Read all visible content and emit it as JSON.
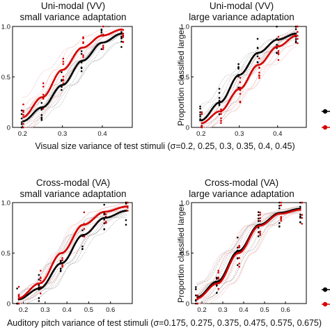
{
  "colors": {
    "adapt_small": "#000000",
    "adapt_large": "#d40000",
    "subject_small": "#9a9a9a",
    "subject_large": "#e4a0a0"
  },
  "shared_labels": {
    "xlabel_top": "Visual size variance of test stimuli   (σ=0.2, 0.25, 0.3, 0.35, 0.4, 0.45)",
    "xlabel_bottom": "Auditory pitch variance of test stimuli (σ=0.175, 0.275, 0.375, 0.475, 0.575, 0.675)"
  },
  "chart_data": [
    {
      "type": "line",
      "title": "Uni-modal (VV)",
      "subtitle": "small variance adaptation",
      "xlabel": "",
      "ylabel": "",
      "xlim": [
        0.175,
        0.475
      ],
      "ylim": [
        0,
        1
      ],
      "xticks": [
        "0.2",
        "0.3",
        "0.4"
      ],
      "xtick_values": [
        0.2,
        0.3,
        0.4
      ],
      "yticks": [
        "0",
        "0.5",
        "1.0"
      ],
      "ytick_values": [
        0,
        0.5,
        1.0
      ],
      "x": [
        0.2,
        0.25,
        0.3,
        0.35,
        0.4,
        0.45
      ],
      "series": [
        {
          "color": "#000000",
          "values": [
            0.06,
            0.2,
            0.42,
            0.66,
            0.84,
            0.93
          ]
        },
        {
          "color": "#d40000",
          "values": [
            0.1,
            0.3,
            0.57,
            0.79,
            0.91,
            0.97
          ]
        }
      ],
      "legend": "right"
    },
    {
      "type": "line",
      "title": "Uni-modal (VV)",
      "subtitle": "large variance adaptation",
      "xlabel": "",
      "ylabel": "Proportion classified larger",
      "xlim": [
        0.175,
        0.475
      ],
      "ylim": [
        0,
        1
      ],
      "xticks": [
        "0.2",
        "0.3",
        "0.4"
      ],
      "xtick_values": [
        0.2,
        0.3,
        0.4
      ],
      "yticks": [
        "0",
        "0.5",
        "1.0"
      ],
      "ytick_values": [
        0,
        0.5,
        1.0
      ],
      "x": [
        0.2,
        0.25,
        0.3,
        0.35,
        0.4,
        0.45
      ],
      "series": [
        {
          "color": "#000000",
          "values": [
            0.07,
            0.25,
            0.52,
            0.74,
            0.87,
            0.93
          ]
        },
        {
          "color": "#d40000",
          "values": [
            0.04,
            0.16,
            0.38,
            0.62,
            0.8,
            0.91
          ]
        }
      ],
      "legend": "right"
    },
    {
      "type": "line",
      "title": "Cross-modal (VA)",
      "subtitle": "small variance adaptation",
      "xlabel": "",
      "ylabel": "",
      "xlim": [
        0.15,
        0.7
      ],
      "ylim": [
        0,
        1
      ],
      "xticks": [
        "0.2",
        "0.3",
        "0.4",
        "0.5",
        "0.6"
      ],
      "xtick_values": [
        0.2,
        0.3,
        0.4,
        0.5,
        0.6
      ],
      "yticks": [
        "0",
        "0.5",
        "1.0"
      ],
      "ytick_values": [
        0,
        0.5,
        1.0
      ],
      "x": [
        0.175,
        0.275,
        0.375,
        0.475,
        0.575,
        0.675
      ],
      "series": [
        {
          "color": "#000000",
          "values": [
            0.04,
            0.15,
            0.4,
            0.68,
            0.85,
            0.92
          ]
        },
        {
          "color": "#d40000",
          "values": [
            0.05,
            0.2,
            0.5,
            0.78,
            0.91,
            0.96
          ]
        }
      ],
      "legend": "right"
    },
    {
      "type": "line",
      "title": "Cross-modal (VA)",
      "subtitle": "large variance adaptation",
      "xlabel": "",
      "ylabel": "Proportion classified larger",
      "xlim": [
        0.15,
        0.7
      ],
      "ylim": [
        0,
        1
      ],
      "xticks": [
        "0.2",
        "0.3",
        "0.4",
        "0.5",
        "0.6"
      ],
      "xtick_values": [
        0.2,
        0.3,
        0.4,
        0.5,
        0.6
      ],
      "yticks": [
        "0",
        "0.5",
        "1.0"
      ],
      "ytick_values": [
        0,
        0.5,
        1.0
      ],
      "x": [
        0.175,
        0.275,
        0.375,
        0.475,
        0.575,
        0.675
      ],
      "series": [
        {
          "color": "#000000",
          "values": [
            0.06,
            0.22,
            0.52,
            0.78,
            0.9,
            0.94
          ]
        },
        {
          "color": "#d40000",
          "values": [
            0.05,
            0.2,
            0.5,
            0.77,
            0.89,
            0.93
          ]
        }
      ],
      "legend": "right"
    }
  ]
}
